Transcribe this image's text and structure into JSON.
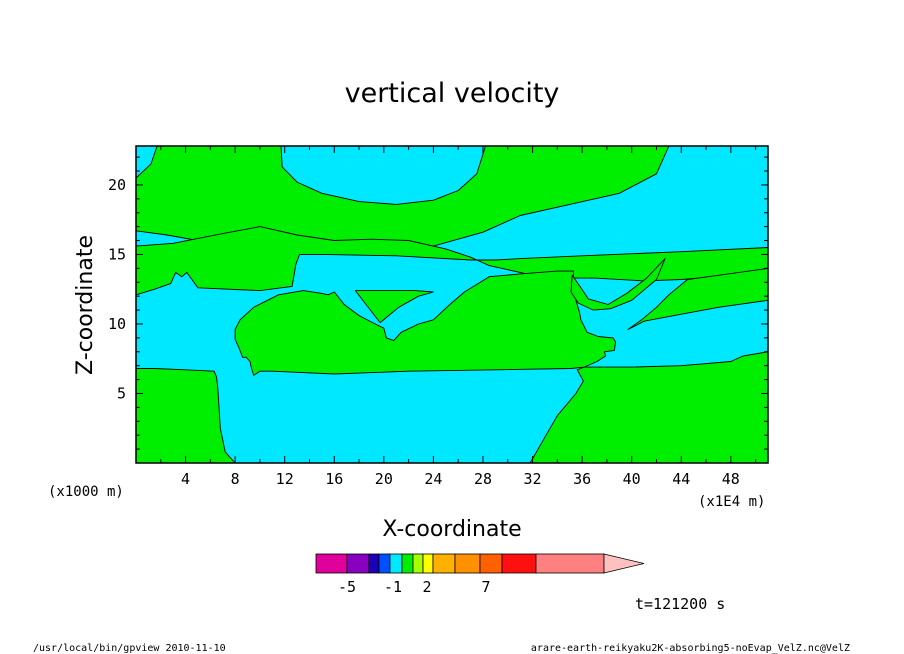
{
  "chart_data": {
    "type": "contour",
    "title": "vertical velocity",
    "xlabel": "X-coordinate",
    "ylabel": "Z-coordinate",
    "x_unit": "(x1E4 m)",
    "y_unit": "(x1000 m)",
    "xlim": [
      0,
      51
    ],
    "ylim": [
      0,
      22.8
    ],
    "x_ticks": [
      "4",
      "8",
      "12",
      "16",
      "20",
      "24",
      "28",
      "32",
      "36",
      "40",
      "44",
      "48"
    ],
    "x_tick_values": [
      4,
      8,
      12,
      16,
      20,
      24,
      28,
      32,
      36,
      40,
      44,
      48
    ],
    "y_ticks": [
      "5",
      "10",
      "15",
      "20"
    ],
    "y_tick_values": [
      5,
      10,
      15,
      20
    ],
    "fill_colors": {
      "negative_small": "#00e8ff",
      "positive_small": "#00ee00"
    },
    "regions": [
      {
        "level": "cyan",
        "color": "#00e8ff",
        "polygon": [
          [
            0,
            22.8
          ],
          [
            51,
            22.8
          ],
          [
            51,
            0
          ],
          [
            0,
            0
          ]
        ]
      },
      {
        "level": "green",
        "color": "#00ee00",
        "polygon": [
          [
            1.7,
            22.8
          ],
          [
            11.7,
            22.8
          ],
          [
            11.8,
            21.3
          ],
          [
            13,
            20.2
          ],
          [
            15,
            19.4
          ],
          [
            18,
            18.8
          ],
          [
            21,
            18.6
          ],
          [
            24,
            18.9
          ],
          [
            26,
            19.6
          ],
          [
            27.5,
            20.8
          ],
          [
            28.2,
            22.8
          ],
          [
            43,
            22.8
          ],
          [
            42,
            20.8
          ],
          [
            39,
            19.4
          ],
          [
            35,
            18.6
          ],
          [
            31,
            17.8
          ],
          [
            28,
            16.6
          ],
          [
            24,
            15.6
          ],
          [
            20,
            15.3
          ],
          [
            15,
            15.4
          ],
          [
            10.5,
            15.3
          ],
          [
            7.5,
            15.6
          ],
          [
            2.5,
            16.4
          ],
          [
            0,
            16.7
          ],
          [
            0,
            20.5
          ],
          [
            1.2,
            21.5
          ]
        ]
      },
      {
        "level": "green",
        "color": "#00ee00",
        "polygon": [
          [
            0,
            12.1
          ],
          [
            0,
            15.6
          ],
          [
            3,
            15.8
          ],
          [
            7,
            16.5
          ],
          [
            10,
            17.0
          ],
          [
            13,
            16.4
          ],
          [
            16,
            16.0
          ],
          [
            19,
            16.1
          ],
          [
            22,
            16.0
          ],
          [
            25,
            15.4
          ],
          [
            27,
            14.8
          ],
          [
            28.5,
            14.2
          ],
          [
            30,
            13.9
          ],
          [
            33,
            13.3
          ],
          [
            37,
            13.3
          ],
          [
            41,
            13.1
          ],
          [
            44,
            13.2
          ],
          [
            47,
            13.4
          ],
          [
            51,
            13.8
          ],
          [
            51,
            15.5
          ],
          [
            44,
            15.2
          ],
          [
            36,
            14.9
          ],
          [
            31,
            14.7
          ],
          [
            29,
            14.6
          ],
          [
            27,
            14.6
          ],
          [
            21,
            14.9
          ],
          [
            15,
            15.0
          ],
          [
            13.2,
            15.0
          ],
          [
            12.9,
            14.3
          ],
          [
            12.6,
            12.7
          ],
          [
            10,
            12.4
          ],
          [
            5,
            12.6
          ],
          [
            4.1,
            13.7
          ],
          [
            3.7,
            13.4
          ],
          [
            3.2,
            13.7
          ],
          [
            2.8,
            12.9
          ],
          [
            1.5,
            12.5
          ]
        ]
      },
      {
        "level": "green",
        "color": "#00ee00",
        "polygon": [
          [
            0,
            0
          ],
          [
            8,
            0
          ],
          [
            7.2,
            0.8
          ],
          [
            6.8,
            2.5
          ],
          [
            6.6,
            5.4
          ],
          [
            6.5,
            6.2
          ],
          [
            6.3,
            6.6
          ],
          [
            4,
            6.7
          ],
          [
            1.5,
            6.8
          ],
          [
            0,
            6.8
          ]
        ]
      },
      {
        "level": "green",
        "color": "#00ee00",
        "polygon": [
          [
            8,
            9.6
          ],
          [
            8.4,
            10.3
          ],
          [
            9.5,
            11.2
          ],
          [
            11.5,
            12.1
          ],
          [
            13.5,
            12.4
          ],
          [
            15,
            12.2
          ],
          [
            15.5,
            12.1
          ],
          [
            16,
            12.3
          ],
          [
            16.8,
            11.4
          ],
          [
            18,
            10.6
          ],
          [
            19.3,
            10.0
          ],
          [
            20,
            9.7
          ],
          [
            20.2,
            9.0
          ],
          [
            20.8,
            8.8
          ],
          [
            21.4,
            9.4
          ],
          [
            22.8,
            10.0
          ],
          [
            24,
            10.3
          ],
          [
            25.2,
            11.3
          ],
          [
            26.5,
            12.3
          ],
          [
            28.5,
            13.4
          ],
          [
            31,
            13.6
          ],
          [
            34,
            13.8
          ],
          [
            35.3,
            13.8
          ],
          [
            35.3,
            12.9
          ],
          [
            35.5,
            11.7
          ],
          [
            35.8,
            10.8
          ],
          [
            35.9,
            10.3
          ],
          [
            36.4,
            9.4
          ],
          [
            37.3,
            9.1
          ],
          [
            38.5,
            9.0
          ],
          [
            38.7,
            8.7
          ],
          [
            38.6,
            8.1
          ],
          [
            37.8,
            8.0
          ],
          [
            37.9,
            7.7
          ],
          [
            37.2,
            7.3
          ],
          [
            35.9,
            6.8
          ],
          [
            35.6,
            6.7
          ],
          [
            36.1,
            5.9
          ],
          [
            35.5,
            5.0
          ],
          [
            34,
            3.4
          ],
          [
            31.8,
            0
          ],
          [
            51,
            0
          ],
          [
            51,
            8.0
          ],
          [
            49,
            7.7
          ],
          [
            48,
            7.3
          ],
          [
            44,
            7.0
          ],
          [
            40,
            6.9
          ],
          [
            38.7,
            6.9
          ],
          [
            36.2,
            6.9
          ],
          [
            35.1,
            6.8
          ],
          [
            29,
            6.7
          ],
          [
            22,
            6.6
          ],
          [
            16,
            6.4
          ],
          [
            11,
            6.6
          ],
          [
            10,
            6.6
          ],
          [
            9.5,
            6.3
          ],
          [
            9.3,
            6.9
          ],
          [
            9.2,
            7.3
          ],
          [
            8.9,
            7.6
          ],
          [
            8.6,
            7.6
          ],
          [
            8.3,
            8.3
          ],
          [
            8,
            8.9
          ]
        ]
      },
      {
        "level": "green",
        "color": "#00ee00",
        "polygon": [
          [
            35.2,
            13.5
          ],
          [
            35.1,
            12.3
          ],
          [
            35.7,
            11.5
          ],
          [
            36.9,
            11.0
          ],
          [
            38.3,
            11.1
          ],
          [
            40,
            11.7
          ],
          [
            42,
            13.2
          ],
          [
            42.7,
            14.7
          ],
          [
            41.2,
            13.3
          ],
          [
            39.6,
            12.2
          ],
          [
            38.1,
            11.4
          ],
          [
            36.5,
            11.8
          ],
          [
            35.9,
            12.6
          ]
        ]
      },
      {
        "level": "green",
        "color": "#00ee00",
        "polygon": [
          [
            39.7,
            9.6
          ],
          [
            40.8,
            10.3
          ],
          [
            42,
            11.2
          ],
          [
            43,
            12.1
          ],
          [
            44.5,
            13.2
          ],
          [
            47,
            13.5
          ],
          [
            51,
            14.0
          ],
          [
            51,
            11.7
          ],
          [
            47,
            11.2
          ],
          [
            44,
            10.7
          ],
          [
            41,
            10.2
          ]
        ]
      },
      {
        "level": "green",
        "color": "#00ee00",
        "polygon": [
          [
            17.7,
            12.4
          ],
          [
            19.7,
            10.1
          ],
          [
            21.2,
            11.2
          ],
          [
            22.8,
            12.0
          ],
          [
            24,
            12.3
          ],
          [
            22.5,
            12.4
          ],
          [
            20,
            12.4
          ]
        ]
      }
    ],
    "colorbar": {
      "colors": [
        "#e0009c",
        "#8a00c0",
        "#1c00b8",
        "#0050ff",
        "#00e8ff",
        "#00ee00",
        "#a6ff00",
        "#ffff00",
        "#ffb000",
        "#ff9000",
        "#ff6000",
        "#ff1010",
        "#ff8080"
      ],
      "labels": [
        "-5",
        "-1",
        "2",
        "7"
      ],
      "end_arrow_color": "#ffc0c0"
    },
    "time_label": "t=121200 s"
  },
  "footer": {
    "left": "/usr/local/bin/gpview  2010-11-10",
    "right": "arare-earth-reikyaku2K-absorbing5-noEvap_VelZ.nc@VelZ"
  }
}
